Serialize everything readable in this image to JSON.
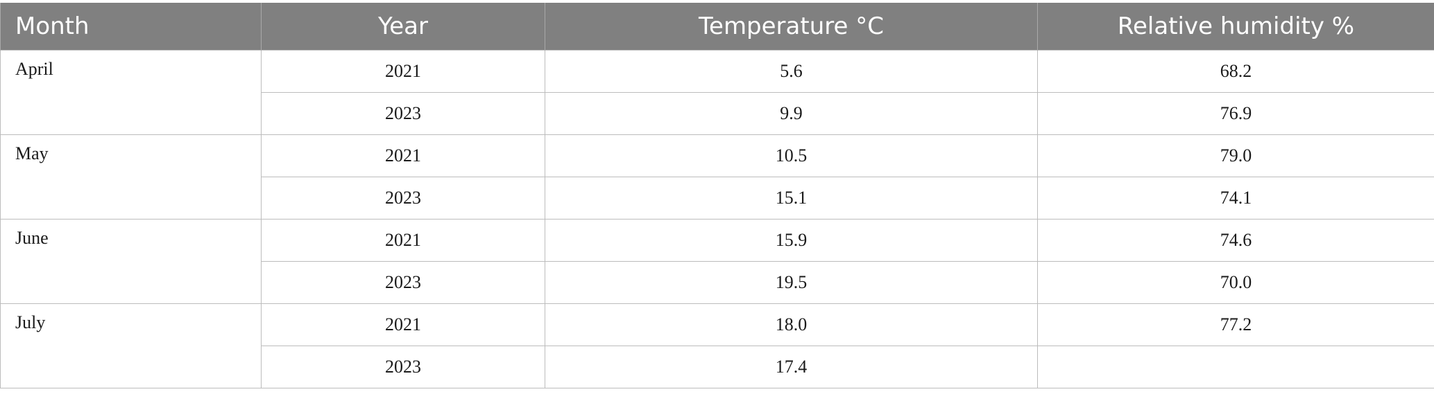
{
  "chart_data": {
    "type": "table",
    "columns": [
      "Month",
      "Year",
      "Temperature °C",
      "Relative humidity %"
    ],
    "groups": [
      {
        "month": "April",
        "rows": [
          {
            "year": "2021",
            "temperature": "5.6",
            "humidity": "68.2"
          },
          {
            "year": "2023",
            "temperature": "9.9",
            "humidity": "76.9"
          }
        ]
      },
      {
        "month": "May",
        "rows": [
          {
            "year": "2021",
            "temperature": "10.5",
            "humidity": "79.0"
          },
          {
            "year": "2023",
            "temperature": "15.1",
            "humidity": "74.1"
          }
        ]
      },
      {
        "month": "June",
        "rows": [
          {
            "year": "2021",
            "temperature": "15.9",
            "humidity": "74.6"
          },
          {
            "year": "2023",
            "temperature": "19.5",
            "humidity": "70.0"
          }
        ]
      },
      {
        "month": "July",
        "rows": [
          {
            "year": "2021",
            "temperature": "18.0",
            "humidity": "77.2"
          },
          {
            "year": "2023",
            "temperature": "17.4",
            "humidity": ""
          }
        ]
      }
    ]
  }
}
